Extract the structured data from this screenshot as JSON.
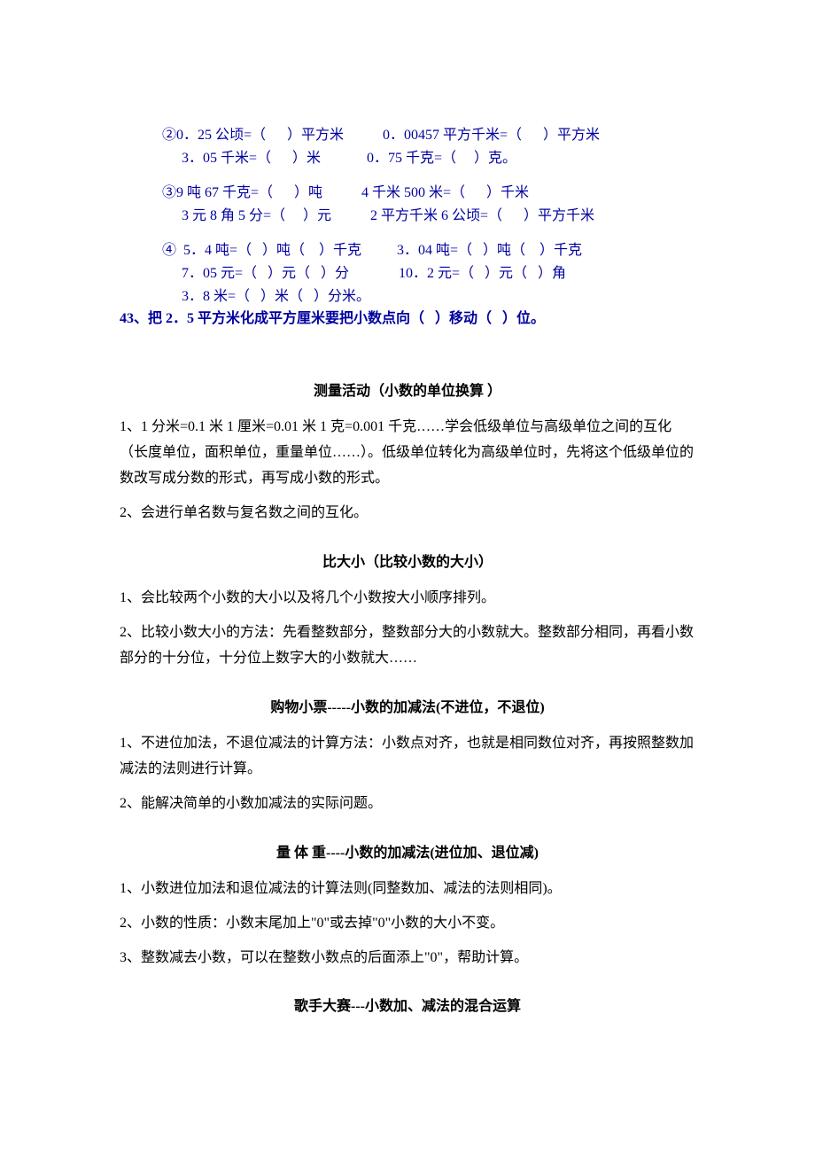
{
  "colors": {
    "blue": "#0000a0",
    "black": "#000000",
    "bg": "#ffffff"
  },
  "fonts": {
    "body": "SimSun",
    "size_pt": 12
  },
  "exercises": {
    "g2": {
      "r1a": "②0．25 公顷=（      ）平方米",
      "r1b": "0．00457 平方千米=（      ）平方米",
      "r2a": "3．05 千米=（      ）米",
      "r2b": "0．75 千克=（     ）克。"
    },
    "g3": {
      "r1a": "③9 吨 67 千克=（      ）吨",
      "r1b": "4 千米 500 米=（      ）千米",
      "r2a": "3 元 8 角 5 分=（     ）元",
      "r2b": "2 平方千米 6 公顷=（      ）平方千米"
    },
    "g4": {
      "r1a": "④  5．4 吨=（   ）吨（    ）千克",
      "r1b": "3．04 吨=（   ）吨（    ）千克",
      "r2a": "7．05 元=（   ）元（   ）分",
      "r2b": "10．2 元=（   ）元（   ）角",
      "r3a": "3．8 米=（   ）米（   ）分米。"
    },
    "q43": "43、把 2．5 平方米化成平方厘米要把小数点向（   ）移动（   ）位。"
  },
  "sections": {
    "s1": {
      "title": "测量活动（小数的单位换算 ）",
      "p1": "1、1 分米=0.1 米   1 厘米=0.01 米    1 克=0.001 千克……学会低级单位与高级单位之间的互化（长度单位，面积单位，重量单位……）。低级单位转化为高级单位时，先将这个低级单位的数改写成分数的形式，再写成小数的形式。",
      "p2": "2、会进行单名数与复名数之间的互化。"
    },
    "s2": {
      "title": "比大小（比较小数的大小）",
      "p1": "1、会比较两个小数的大小以及将几个小数按大小顺序排列。",
      "p2": "2、比较小数大小的方法：先看整数部分，整数部分大的小数就大。整数部分相同，再看小数部分的十分位，十分位上数字大的小数就大……"
    },
    "s3": {
      "title": "购物小票-----小数的加减法(不进位，不退位)",
      "p1": "1、不进位加法，不退位减法的计算方法：小数点对齐，也就是相同数位对齐，再按照整数加减法的法则进行计算。",
      "p2": "2、能解决简单的小数加减法的实际问题。"
    },
    "s4": {
      "title": "量   体   重----小数的加减法(进位加、退位减)",
      "p1": "1、小数进位加法和退位减法的计算法则(同整数加、减法的法则相同)。",
      "p2": "2、小数的性质：小数末尾加上\"0\"或去掉\"0\"小数的大小不变。",
      "p3": "3、整数减去小数，可以在整数小数点的后面添上\"0\"，帮助计算。"
    },
    "s5": {
      "title": "歌手大赛---小数加、减法的混合运算"
    }
  }
}
